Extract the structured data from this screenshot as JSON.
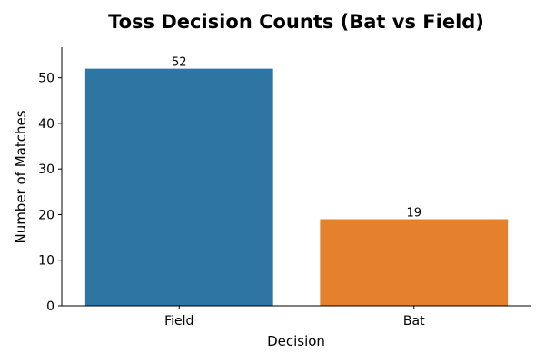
{
  "chart_data": {
    "type": "bar",
    "title": "Toss Decision Counts (Bat vs Field)",
    "xlabel": "Decision",
    "ylabel": "Number of Matches",
    "categories": [
      "Field",
      "Bat"
    ],
    "values": [
      52,
      19
    ],
    "data_labels": [
      "52",
      "19"
    ],
    "colors": [
      "#2e75a3",
      "#e5812c"
    ],
    "ylim": [
      0,
      56.7
    ],
    "yticks": [
      0,
      10,
      20,
      30,
      40,
      50
    ],
    "ytick_labels": [
      "0",
      "10",
      "20",
      "30",
      "40",
      "50"
    ],
    "grid": false,
    "legend": "none",
    "spines": [
      "left",
      "bottom"
    ]
  }
}
